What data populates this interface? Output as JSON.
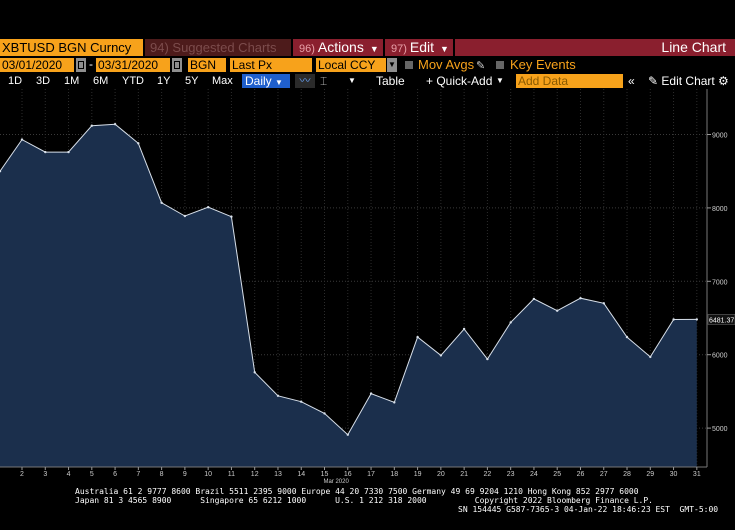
{
  "toolbar": {
    "ticker": "XBTUSD BGN Curncy",
    "suggested": "94) Suggested Charts",
    "actions": {
      "num": "96)",
      "label": "Actions"
    },
    "edit": {
      "num": "97)",
      "label": "Edit"
    },
    "chart_type": "Line Chart"
  },
  "params": {
    "start_date": "03/01/2020",
    "end_date": "03/31/2020",
    "source": "BGN",
    "field": "Last Px",
    "currency": "Local CCY",
    "mov_avgs": "Mov Avgs",
    "key_events": "Key Events"
  },
  "periods": [
    "1D",
    "3D",
    "1M",
    "6M",
    "YTD",
    "1Y",
    "5Y",
    "Max"
  ],
  "frequency": "Daily",
  "buttons": {
    "table": "Table",
    "quick_add": "+ Quick-Add",
    "add_data_placeholder": "Add Data",
    "edit_chart": "Edit Chart"
  },
  "colors": {
    "orange": "#f7a21b",
    "menu_red": "#8a1f2e",
    "area_fill": "#1b2f4c",
    "line": "#d8e0ea"
  },
  "chart_data": {
    "type": "area",
    "x": [
      1,
      2,
      3,
      4,
      5,
      6,
      7,
      8,
      9,
      10,
      11,
      12,
      13,
      14,
      15,
      16,
      17,
      18,
      19,
      20,
      21,
      22,
      23,
      24,
      25,
      26,
      27,
      28,
      29,
      30,
      31
    ],
    "values": [
      8500,
      8930,
      8760,
      8760,
      9120,
      9140,
      8880,
      8070,
      7890,
      8010,
      7880,
      5760,
      5440,
      5360,
      5200,
      4910,
      5470,
      5350,
      6240,
      5990,
      6350,
      5940,
      6440,
      6760,
      6600,
      6770,
      6700,
      6240,
      5970,
      6480,
      6481.37
    ],
    "last_label": "6481.37",
    "ylim": [
      4470,
      9620
    ],
    "yticks": [
      5000,
      6000,
      7000,
      8000,
      9000
    ],
    "xticks": [
      "2",
      "3",
      "4",
      "5",
      "6",
      "7",
      "8",
      "9",
      "10",
      "11",
      "12",
      "13",
      "14",
      "15",
      "16",
      "17",
      "18",
      "19",
      "20",
      "21",
      "22",
      "23",
      "24",
      "25",
      "26",
      "27",
      "28",
      "29",
      "30",
      "31"
    ],
    "month_label": "Mar 2020",
    "grid": true
  },
  "footer": {
    "line1": "Australia 61 2 9777 8600 Brazil 5511 2395 9000 Europe 44 20 7330 7500 Germany 49 69 9204 1210 Hong Kong 852 2977 6000",
    "line2": "Japan 81 3 4565 8900      Singapore 65 6212 1000      U.S. 1 212 318 2000          Copyright 2022 Bloomberg Finance L.P.",
    "line3": "SN 154445 G587-7365-3 04-Jan-22 18:46:23 EST  GMT-5:00"
  }
}
